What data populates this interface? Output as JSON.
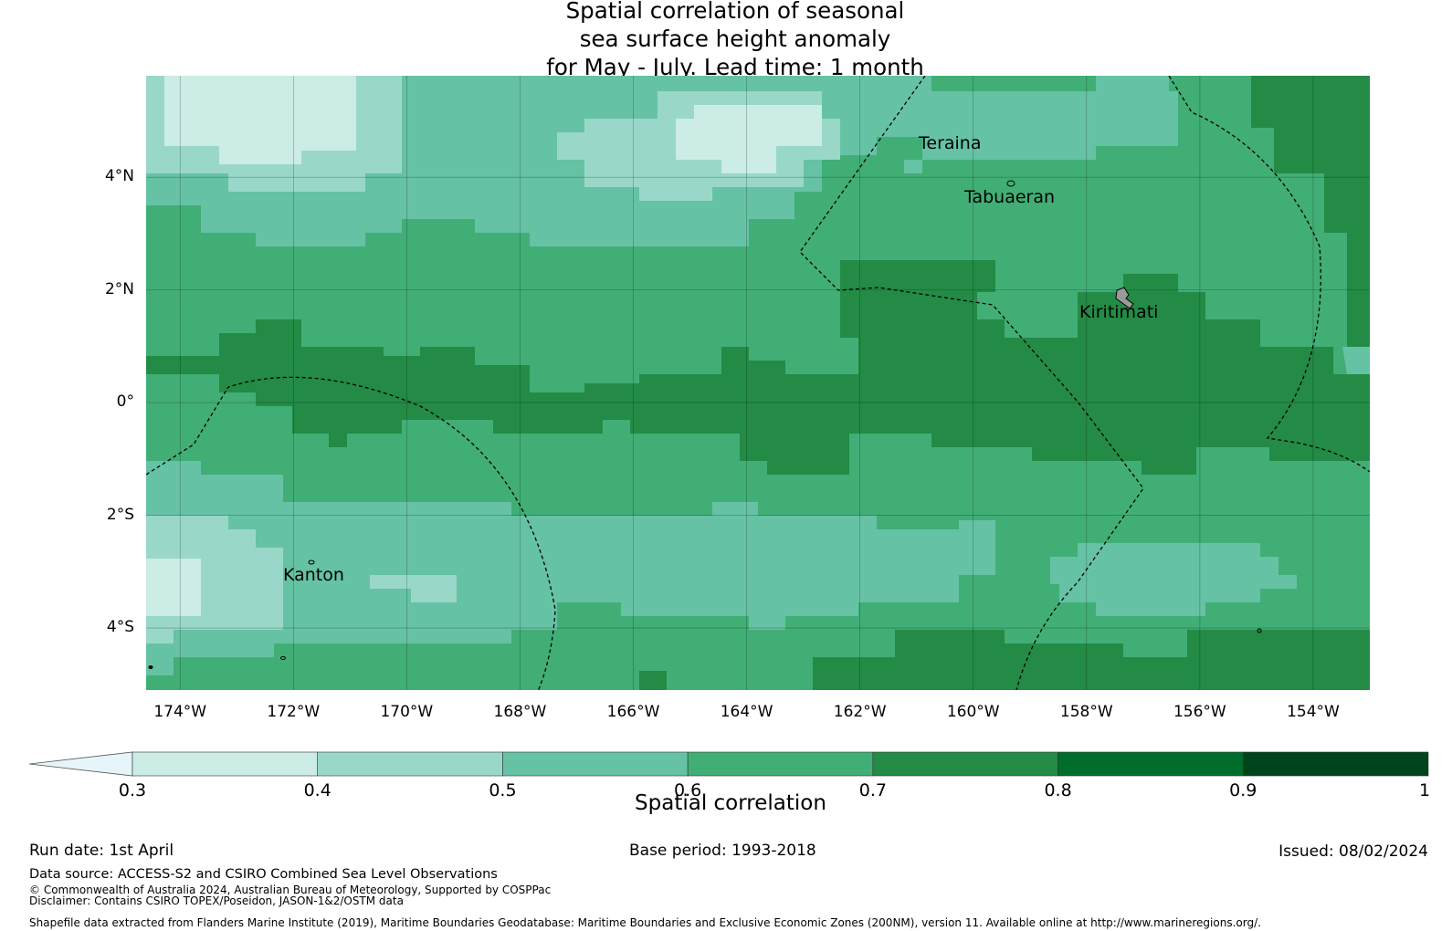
{
  "title": {
    "line1": "Spatial correlation of seasonal",
    "line2": "sea surface height anomaly",
    "line3": "for May - July. Lead time: 1 month"
  },
  "map": {
    "lon_range": [
      -174.6,
      -153.0
    ],
    "lat_range": [
      -5.1,
      5.8
    ],
    "x_ticks": [
      "174°W",
      "172°W",
      "170°W",
      "168°W",
      "166°W",
      "164°W",
      "162°W",
      "160°W",
      "158°W",
      "156°W",
      "154°W"
    ],
    "y_ticks": [
      "4°N",
      "2°N",
      "0°",
      "2°S",
      "4°S"
    ],
    "places": [
      {
        "name": "Teraina",
        "lon": -160.4,
        "lat": 4.65
      },
      {
        "name": "Tabuaeran",
        "lon": -159.3,
        "lat": 3.7
      },
      {
        "name": "Kiritimati",
        "lon": -157.4,
        "lat": 1.6
      },
      {
        "name": "Kanton",
        "lon": -171.7,
        "lat": -3.1
      }
    ]
  },
  "colorbar": {
    "ticks": [
      "0.3",
      "0.4",
      "0.5",
      "0.6",
      "0.7",
      "0.8",
      "0.9",
      "1"
    ],
    "colors": [
      "#e5f5f9",
      "#ccece6",
      "#99d8c9",
      "#66c2a4",
      "#41ae76",
      "#238b45",
      "#006d2c",
      "#00441b"
    ],
    "extend": "min",
    "label": "Spatial correlation"
  },
  "footer": {
    "run_date": "Run date: 1st April",
    "base_period": "Base period: 1993-2018",
    "issued": "Issued: 08/02/2024",
    "data_source": "Data source: ACCESS-S2 and CSIRO Combined Sea Level Observations",
    "copyright": "© Commonwealth of Australia 2024, Australian Bureau of Meteorology, Supported by COSPPac",
    "disclaimer": "Disclaimer: Contains CSIRO TOPEX/Poseidon, JASON-1&2/OSTM data",
    "shapefile": "Shapefile data extracted from Flanders Marine Institute (2019), Maritime Boundaries Geodatabase: Maritime Boundaries and Exclusive Economic Zones (200NM), version 11. Available online at http://www.marineregions.org/."
  }
}
